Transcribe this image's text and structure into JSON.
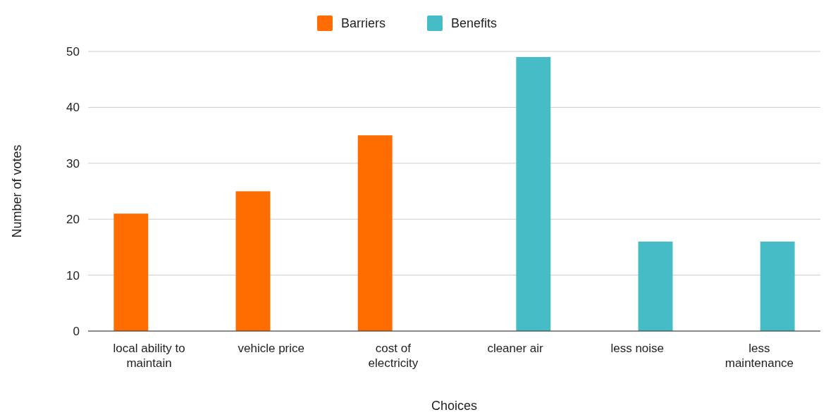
{
  "chart_data": {
    "type": "bar",
    "xlabel": "Choices",
    "ylabel": "Number of votes",
    "categories": [
      "local ability to maintain",
      "vehicle price",
      "cost of electricity",
      "cleaner air",
      "less noise",
      "less maintenance"
    ],
    "series": [
      {
        "name": "Barriers",
        "color": "#ff6d01",
        "values": [
          21,
          25,
          35,
          null,
          null,
          null
        ]
      },
      {
        "name": "Benefits",
        "color": "#46bdc6",
        "values": [
          null,
          null,
          null,
          49,
          16,
          16
        ]
      }
    ],
    "ylim": [
      0,
      50
    ],
    "yticks": [
      0,
      10,
      20,
      30,
      40,
      50
    ],
    "grid": "y",
    "legend": "top"
  }
}
